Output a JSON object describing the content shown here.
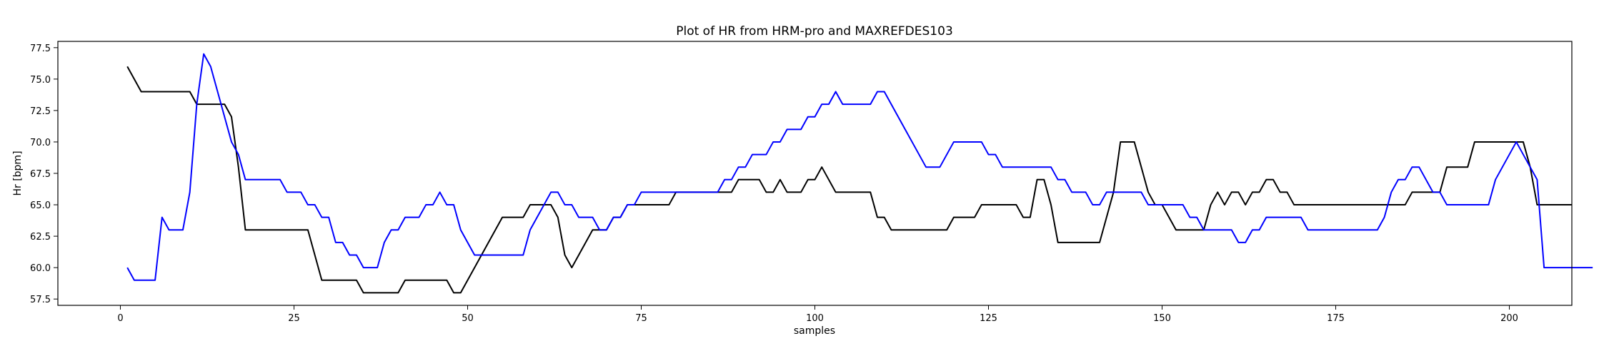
{
  "chart_data": {
    "type": "line",
    "title": "Plot of HR from HRM-pro and MAXREFDES103",
    "xlabel": "samples",
    "ylabel": "Hr [bpm]",
    "xlim": [
      -9,
      209
    ],
    "ylim": [
      57,
      78
    ],
    "xticks": [
      0,
      25,
      50,
      75,
      100,
      125,
      150,
      175,
      200
    ],
    "yticks": [
      57.5,
      60.0,
      62.5,
      65.0,
      67.5,
      70.0,
      72.5,
      75.0,
      77.5
    ],
    "grid": false,
    "legend": "none",
    "x_start": 1,
    "series": [
      {
        "color": "#000000",
        "values": [
          76,
          75,
          74,
          74,
          74,
          74,
          74,
          74,
          74,
          74,
          73,
          73,
          73,
          73,
          73,
          72,
          68,
          63,
          63,
          63,
          63,
          63,
          63,
          63,
          63,
          63,
          63,
          61,
          59,
          59,
          59,
          59,
          59,
          59,
          58,
          58,
          58,
          58,
          58,
          58,
          59,
          59,
          59,
          59,
          59,
          59,
          59,
          58,
          58,
          59,
          60,
          61,
          62,
          63,
          64,
          64,
          64,
          64,
          65,
          65,
          65,
          65,
          64,
          61,
          60,
          61,
          62,
          63,
          63,
          63,
          64,
          64,
          65,
          65,
          65,
          65,
          65,
          65,
          65,
          66,
          66,
          66,
          66,
          66,
          66,
          66,
          66,
          66,
          67,
          67,
          67,
          67,
          66,
          66,
          67,
          66,
          66,
          66,
          67,
          67,
          68,
          67,
          66,
          66,
          66,
          66,
          66,
          66,
          64,
          64,
          63,
          63,
          63,
          63,
          63,
          63,
          63,
          63,
          63,
          64,
          64,
          64,
          64,
          65,
          65,
          65,
          65,
          65,
          65,
          64,
          64,
          67,
          67,
          65,
          62,
          62,
          62,
          62,
          62,
          62,
          62,
          64,
          66,
          70,
          70,
          70,
          68,
          66,
          65,
          65,
          64,
          63,
          63,
          63,
          63,
          63,
          65,
          66,
          65,
          66,
          66,
          65,
          66,
          66,
          67,
          67,
          66,
          66,
          65,
          65,
          65,
          65,
          65,
          65,
          65,
          65,
          65,
          65,
          65,
          65,
          65,
          65,
          65,
          65,
          65,
          66,
          66,
          66,
          66,
          66,
          68,
          68,
          68,
          68,
          70,
          70,
          70,
          70,
          70,
          70,
          70,
          70,
          68,
          65,
          65,
          65,
          65,
          65,
          65
        ]
      },
      {
        "color": "#0000ff",
        "values": [
          60,
          59,
          59,
          59,
          59,
          64,
          63,
          63,
          63,
          66,
          73,
          77,
          76,
          74,
          72,
          70,
          69,
          67,
          67,
          67,
          67,
          67,
          67,
          66,
          66,
          66,
          65,
          65,
          64,
          64,
          62,
          62,
          61,
          61,
          60,
          60,
          60,
          62,
          63,
          63,
          64,
          64,
          64,
          65,
          65,
          66,
          65,
          65,
          63,
          62,
          61,
          61,
          61,
          61,
          61,
          61,
          61,
          61,
          63,
          64,
          65,
          66,
          66,
          65,
          65,
          64,
          64,
          64,
          63,
          63,
          64,
          64,
          65,
          65,
          66,
          66,
          66,
          66,
          66,
          66,
          66,
          66,
          66,
          66,
          66,
          66,
          67,
          67,
          68,
          68,
          69,
          69,
          69,
          70,
          70,
          71,
          71,
          71,
          72,
          72,
          73,
          73,
          74,
          73,
          73,
          73,
          73,
          73,
          74,
          74,
          73,
          72,
          71,
          70,
          69,
          68,
          68,
          68,
          69,
          70,
          70,
          70,
          70,
          70,
          69,
          69,
          68,
          68,
          68,
          68,
          68,
          68,
          68,
          68,
          67,
          67,
          66,
          66,
          66,
          65,
          65,
          66,
          66,
          66,
          66,
          66,
          66,
          65,
          65,
          65,
          65,
          65,
          65,
          64,
          64,
          63,
          63,
          63,
          63,
          63,
          62,
          62,
          63,
          63,
          64,
          64,
          64,
          64,
          64,
          64,
          63,
          63,
          63,
          63,
          63,
          63,
          63,
          63,
          63,
          63,
          63,
          64,
          66,
          67,
          67,
          68,
          68,
          67,
          66,
          66,
          65,
          65,
          65,
          65,
          65,
          65,
          65,
          67,
          68,
          69,
          70,
          69,
          68,
          67,
          60,
          60,
          60,
          60,
          60,
          60,
          60,
          60
        ]
      }
    ]
  }
}
